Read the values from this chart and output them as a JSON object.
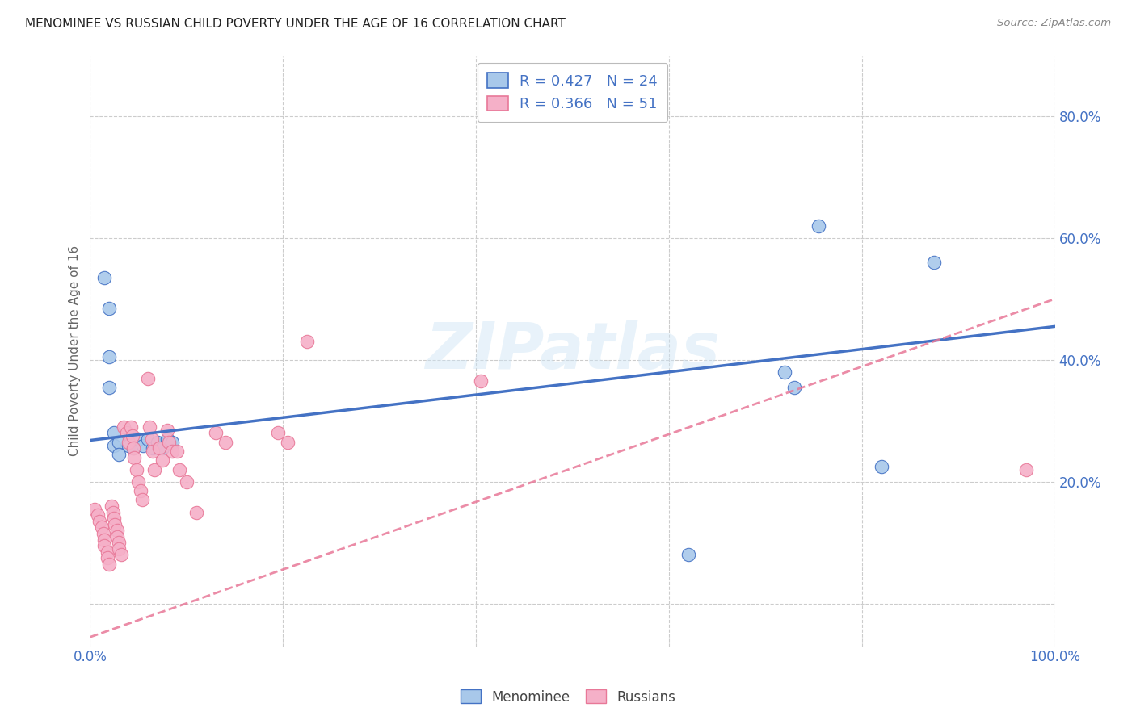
{
  "title": "MENOMINEE VS RUSSIAN CHILD POVERTY UNDER THE AGE OF 16 CORRELATION CHART",
  "source": "Source: ZipAtlas.com",
  "ylabel": "Child Poverty Under the Age of 16",
  "xlim": [
    0,
    1.0
  ],
  "ylim": [
    -0.07,
    0.9
  ],
  "xticks": [
    0.0,
    0.2,
    0.4,
    0.6,
    0.8,
    1.0
  ],
  "xticklabels": [
    "0.0%",
    "",
    "",
    "",
    "",
    "100.0%"
  ],
  "ytick_positions": [
    0.0,
    0.2,
    0.4,
    0.6,
    0.8
  ],
  "yticklabels": [
    "",
    "20.0%",
    "40.0%",
    "60.0%",
    "80.0%"
  ],
  "menominee_R": 0.427,
  "menominee_N": 24,
  "russian_R": 0.366,
  "russian_N": 51,
  "menominee_color": "#a8c8ea",
  "russian_color": "#f5b0c8",
  "menominee_line_color": "#4472c4",
  "russian_line_color": "#e87898",
  "menominee_scatter": [
    [
      0.015,
      0.535
    ],
    [
      0.02,
      0.485
    ],
    [
      0.02,
      0.405
    ],
    [
      0.02,
      0.355
    ],
    [
      0.025,
      0.28
    ],
    [
      0.025,
      0.26
    ],
    [
      0.03,
      0.265
    ],
    [
      0.03,
      0.245
    ],
    [
      0.04,
      0.26
    ],
    [
      0.045,
      0.255
    ],
    [
      0.05,
      0.27
    ],
    [
      0.055,
      0.26
    ],
    [
      0.06,
      0.27
    ],
    [
      0.065,
      0.255
    ],
    [
      0.07,
      0.265
    ],
    [
      0.075,
      0.255
    ],
    [
      0.08,
      0.27
    ],
    [
      0.085,
      0.265
    ],
    [
      0.62,
      0.08
    ],
    [
      0.72,
      0.38
    ],
    [
      0.73,
      0.355
    ],
    [
      0.755,
      0.62
    ],
    [
      0.82,
      0.225
    ],
    [
      0.875,
      0.56
    ]
  ],
  "russian_scatter": [
    [
      0.005,
      0.155
    ],
    [
      0.008,
      0.145
    ],
    [
      0.01,
      0.135
    ],
    [
      0.012,
      0.125
    ],
    [
      0.014,
      0.115
    ],
    [
      0.015,
      0.105
    ],
    [
      0.015,
      0.095
    ],
    [
      0.018,
      0.085
    ],
    [
      0.018,
      0.075
    ],
    [
      0.02,
      0.065
    ],
    [
      0.022,
      0.16
    ],
    [
      0.024,
      0.15
    ],
    [
      0.025,
      0.14
    ],
    [
      0.026,
      0.13
    ],
    [
      0.028,
      0.12
    ],
    [
      0.028,
      0.11
    ],
    [
      0.03,
      0.1
    ],
    [
      0.03,
      0.09
    ],
    [
      0.032,
      0.08
    ],
    [
      0.035,
      0.29
    ],
    [
      0.038,
      0.28
    ],
    [
      0.04,
      0.265
    ],
    [
      0.042,
      0.29
    ],
    [
      0.044,
      0.275
    ],
    [
      0.045,
      0.255
    ],
    [
      0.046,
      0.24
    ],
    [
      0.048,
      0.22
    ],
    [
      0.05,
      0.2
    ],
    [
      0.052,
      0.185
    ],
    [
      0.054,
      0.17
    ],
    [
      0.06,
      0.37
    ],
    [
      0.062,
      0.29
    ],
    [
      0.064,
      0.27
    ],
    [
      0.065,
      0.25
    ],
    [
      0.067,
      0.22
    ],
    [
      0.072,
      0.255
    ],
    [
      0.075,
      0.235
    ],
    [
      0.08,
      0.285
    ],
    [
      0.082,
      0.265
    ],
    [
      0.085,
      0.25
    ],
    [
      0.09,
      0.25
    ],
    [
      0.093,
      0.22
    ],
    [
      0.1,
      0.2
    ],
    [
      0.11,
      0.15
    ],
    [
      0.13,
      0.28
    ],
    [
      0.14,
      0.265
    ],
    [
      0.195,
      0.28
    ],
    [
      0.205,
      0.265
    ],
    [
      0.225,
      0.43
    ],
    [
      0.405,
      0.365
    ],
    [
      0.97,
      0.22
    ]
  ],
  "menominee_trend": [
    0.0,
    1.0,
    0.268,
    0.455
  ],
  "russian_trend": [
    0.0,
    1.0,
    -0.055,
    0.5
  ],
  "watermark_text": "ZIPatlas",
  "background_color": "#ffffff",
  "grid_color": "#cccccc"
}
